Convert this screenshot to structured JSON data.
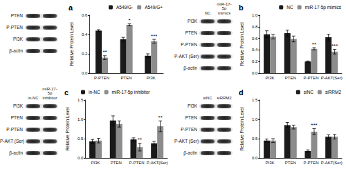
{
  "chart_data": [
    {
      "type": "bar",
      "title": "a",
      "y_label": "Relative Protein Level",
      "categories": [
        "P-PTEN",
        "PTEN",
        "PI3K"
      ],
      "series": [
        {
          "name": "A549/G-",
          "color": "#1a1a1a",
          "values": [
            0.44,
            0.35,
            0.18
          ],
          "errors": [
            0.01,
            0.02,
            0.02
          ]
        },
        {
          "name": "A549/G+",
          "color": "#8c8c8c",
          "values": [
            0.16,
            0.5,
            0.33
          ],
          "errors": [
            0.02,
            0.01,
            0.02
          ],
          "significance": [
            "**",
            "*",
            "***"
          ]
        }
      ],
      "ylim": [
        0,
        0.6
      ],
      "yticks": [
        {
          "value": 0,
          "label": "0.0"
        },
        {
          "value": 0.2,
          "label": "0.2"
        },
        {
          "value": 0.4,
          "label": "0.4"
        },
        {
          "value": 0.6,
          "label": "0.6"
        }
      ],
      "grid": false,
      "legend": "upper right"
    },
    {
      "type": "bar",
      "title": "b",
      "y_label": "Relative Protein Level",
      "categories": [
        "PI3K",
        "PTEN",
        "P-PTEN",
        "P-AKT(Ser)"
      ],
      "series": [
        {
          "name": "NC",
          "color": "#1a1a1a",
          "values": [
            0.67,
            0.69,
            0.2,
            0.62
          ],
          "errors": [
            0.06,
            0.05,
            0.01,
            0.05
          ]
        },
        {
          "name": "miR-17-5p mimics",
          "color": "#8c8c8c",
          "values": [
            0.63,
            0.59,
            0.42,
            0.37
          ],
          "errors": [
            0.04,
            0.05,
            0.02,
            0.04
          ],
          "significance": [
            null,
            null,
            "**",
            "***"
          ]
        }
      ],
      "ylim": [
        0,
        1.0
      ],
      "yticks": [
        {
          "value": 0,
          "label": "0.0"
        },
        {
          "value": 0.2,
          "label": "0.2"
        },
        {
          "value": 0.4,
          "label": "0.4"
        },
        {
          "value": 0.6,
          "label": "0.6"
        },
        {
          "value": 0.8,
          "label": "0.8"
        },
        {
          "value": 1.0,
          "label": "1.0"
        }
      ],
      "grid": false,
      "legend": "upper right"
    },
    {
      "type": "bar",
      "title": "c",
      "y_label": "Relative Protein Level",
      "categories": [
        "PI3K",
        "PTEN",
        "P-PTEN",
        "P-AKT(Ser)"
      ],
      "series": [
        {
          "name": "in-NC",
          "color": "#1a1a1a",
          "values": [
            0.43,
            0.97,
            0.48,
            0.38
          ],
          "errors": [
            0.05,
            0.12,
            0.04,
            0.05
          ]
        },
        {
          "name": "miR-17-5p inhibitor",
          "color": "#8c8c8c",
          "values": [
            0.45,
            0.88,
            0.28,
            0.82
          ],
          "errors": [
            0.06,
            0.08,
            0.1,
            0.14
          ],
          "significance": [
            null,
            null,
            "**",
            "**"
          ]
        }
      ],
      "ylim": [
        0,
        1.5
      ],
      "yticks": [
        {
          "value": 0,
          "label": "0.0"
        },
        {
          "value": 0.5,
          "label": "0.5"
        },
        {
          "value": 1.0,
          "label": "1.0"
        },
        {
          "value": 1.5,
          "label": "1.5"
        }
      ],
      "grid": false,
      "legend": "upper left"
    },
    {
      "type": "bar",
      "title": "d",
      "y_label": "Relative Protein Level",
      "categories": [
        "PI3K",
        "PTEN",
        "P-PTEN",
        "P-AKT(Ser)"
      ],
      "series": [
        {
          "name": "siNC",
          "color": "#1a1a1a",
          "values": [
            0.45,
            0.85,
            0.18,
            0.55
          ],
          "errors": [
            0.04,
            0.07,
            0.03,
            0.05
          ]
        },
        {
          "name": "siRRM2",
          "color": "#8c8c8c",
          "values": [
            0.45,
            0.8,
            0.68,
            0.55
          ],
          "errors": [
            0.05,
            0.05,
            0.08,
            0.06
          ],
          "significance": [
            null,
            null,
            "***",
            null
          ]
        }
      ],
      "ylim": [
        0,
        1.5
      ],
      "yticks": [
        {
          "value": 0,
          "label": "0.0"
        },
        {
          "value": 0.5,
          "label": "0.5"
        },
        {
          "value": 1.0,
          "label": "1.0"
        },
        {
          "value": 1.5,
          "label": "1.5"
        }
      ],
      "grid": false,
      "legend": "upper right"
    }
  ],
  "blots": [
    {
      "bands": [
        "PTEN",
        "P-PTEN",
        "PI3K",
        "β-actin"
      ]
    },
    {
      "lanes": [
        "NC",
        "miR-17-5p mimics"
      ],
      "bands": [
        "PI3K",
        "PTEN",
        "P-PTEN",
        "P-AKT (Ser)",
        "β-actin"
      ]
    },
    {
      "lanes": [
        "in-NC",
        "miR-17-5p inhibitor"
      ],
      "bands": [
        "PI3K",
        "PTEN",
        "P-PTEN",
        "P-AKT (Ser)",
        "β-actin"
      ]
    },
    {
      "lanes": [
        "siNC",
        "siRRM2"
      ],
      "bands": [
        "PI3K",
        "PTEN",
        "P-PTEN",
        "P-AKT (Ser)",
        "β-actin"
      ]
    }
  ]
}
